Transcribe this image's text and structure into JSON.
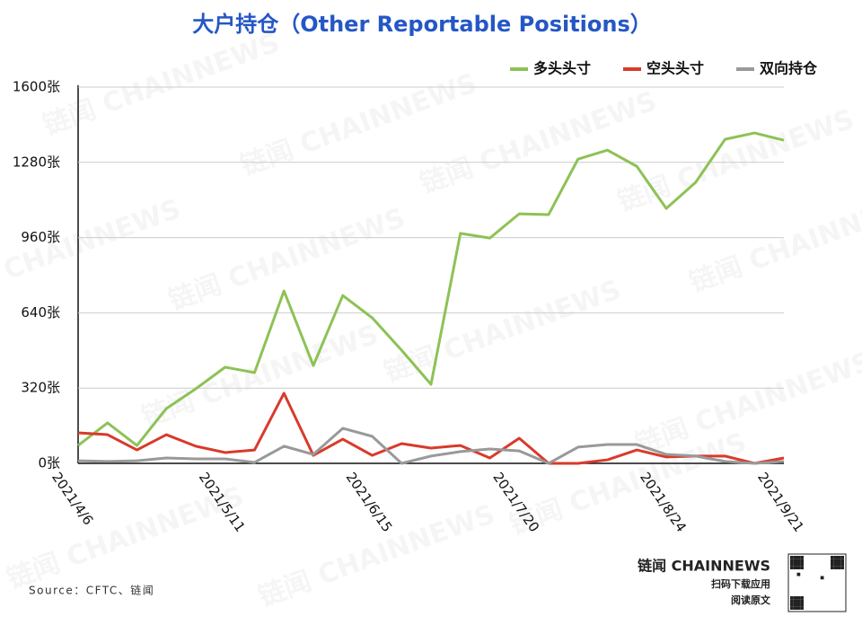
{
  "chart_data": {
    "type": "line",
    "title": "大户持仓（Other Reportable Positions）",
    "categories": [
      "2021/4/6",
      null,
      null,
      null,
      null,
      "2021/5/11",
      null,
      null,
      null,
      null,
      "2021/6/15",
      null,
      null,
      null,
      null,
      "2021/7/20",
      null,
      null,
      null,
      null,
      "2021/8/24",
      null,
      null,
      null,
      "2021/9/21"
    ],
    "series": [
      {
        "name": "多头头寸",
        "color": "#8dc255",
        "values": [
          76,
          172,
          76,
          233,
          317,
          409,
          386,
          733,
          416,
          714,
          619,
          481,
          336,
          978,
          958,
          1061,
          1058,
          1294,
          1332,
          1263,
          1084,
          1195,
          1378,
          1405,
          1374
        ]
      },
      {
        "name": "空头头寸",
        "color": "#d93a2b",
        "values": [
          130,
          122,
          57,
          122,
          73,
          46,
          57,
          298,
          34,
          103,
          34,
          84,
          65,
          76,
          23,
          107,
          0,
          0,
          15,
          57,
          27,
          31,
          31,
          0,
          23
        ]
      },
      {
        "name": "双向持仓",
        "color": "#999999",
        "values": [
          11,
          8,
          11,
          23,
          19,
          19,
          4,
          73,
          38,
          149,
          115,
          0,
          31,
          50,
          61,
          53,
          0,
          69,
          80,
          80,
          38,
          31,
          8,
          0,
          8
        ]
      }
    ],
    "ylim": [
      0,
      1600
    ],
    "yticks": [
      {
        "value": 0,
        "label": "0张"
      },
      {
        "value": 320,
        "label": "320张"
      },
      {
        "value": 640,
        "label": "640张"
      },
      {
        "value": 960,
        "label": "960张"
      },
      {
        "value": 1280,
        "label": "1280张"
      },
      {
        "value": 1600,
        "label": "1600张"
      }
    ],
    "grid": true,
    "legend_position": "top-right",
    "source": "Source：CFTC、链闻",
    "watermark": "链闻 CHAINNEWS"
  },
  "brand": {
    "name": "链闻 CHAINNEWS",
    "line1": "扫码下载应用",
    "line2": "阅读原文"
  }
}
